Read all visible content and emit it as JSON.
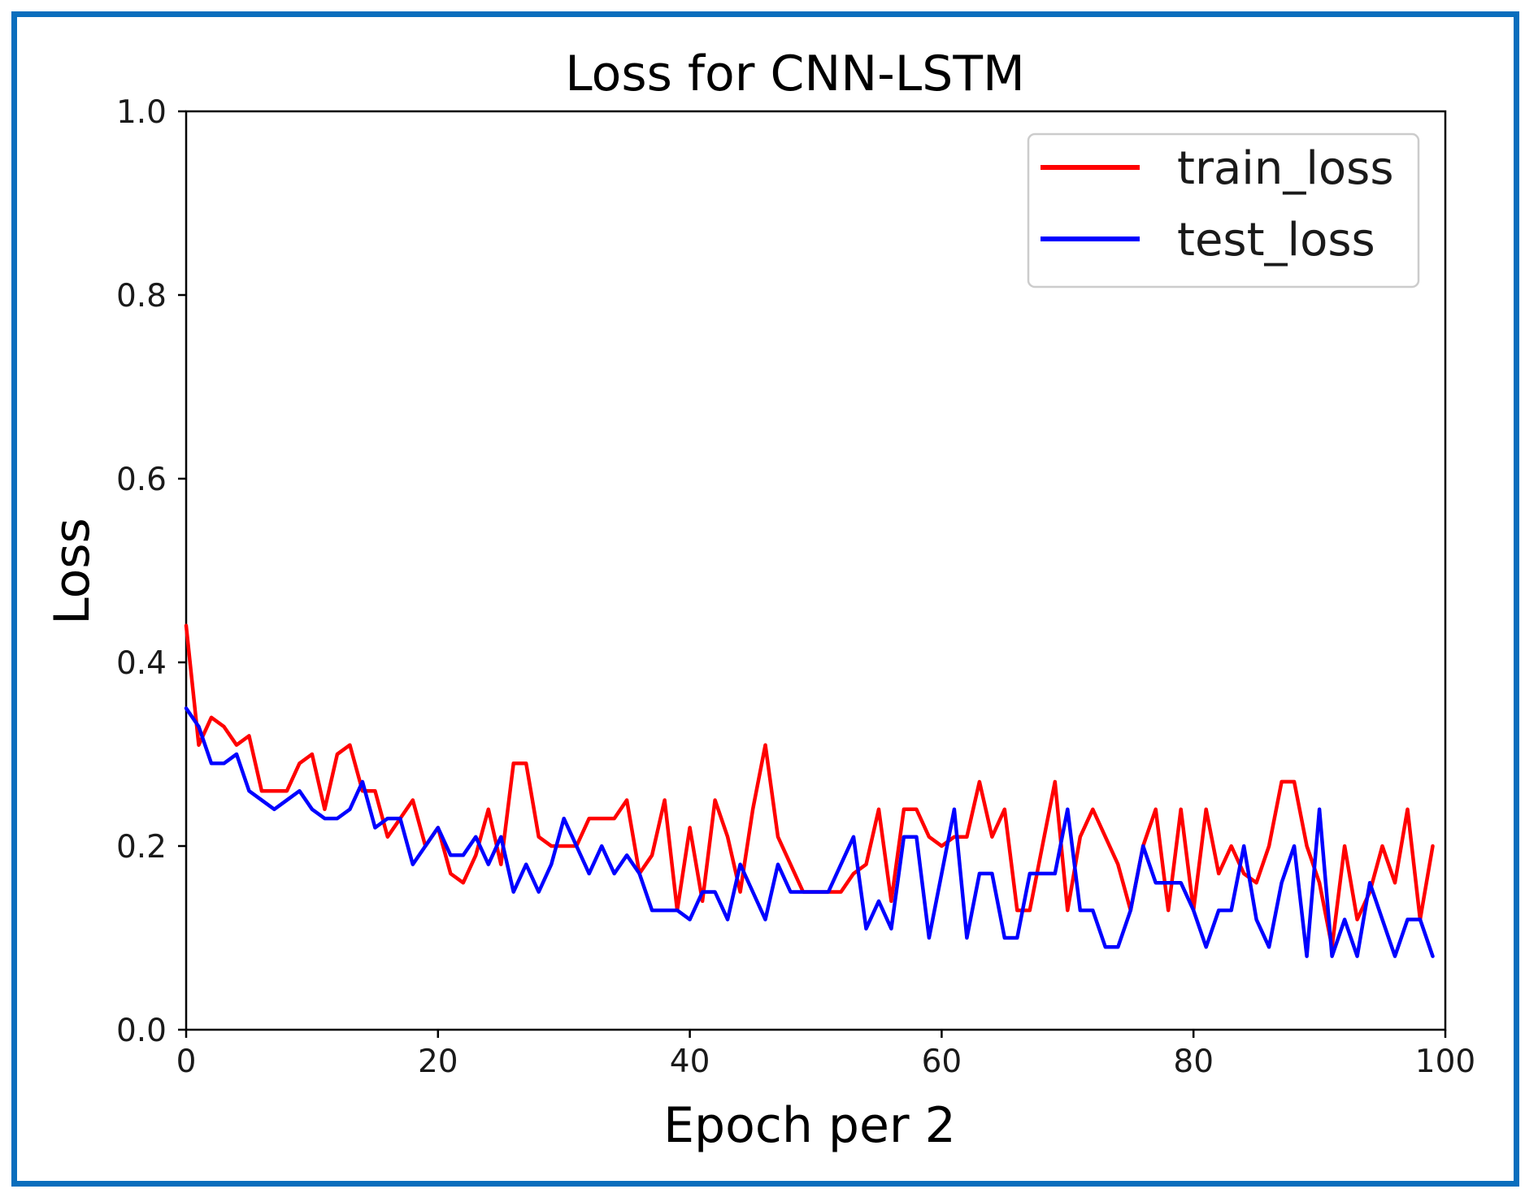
{
  "chart_data": {
    "type": "line",
    "title": "Loss for CNN-LSTM",
    "xlabel": "Epoch per 2",
    "ylabel": "Loss",
    "xlim": [
      0,
      100
    ],
    "ylim": [
      0.0,
      1.0
    ],
    "xticks": [
      "0",
      "20",
      "40",
      "60",
      "80",
      "100"
    ],
    "yticks": [
      "0.0",
      "0.2",
      "0.4",
      "0.6",
      "0.8",
      "1.0"
    ],
    "legend_position": "top-right",
    "grid": false,
    "series": [
      {
        "name": "train_loss",
        "color": "#ff0000",
        "x": [
          0,
          1,
          2,
          3,
          4,
          5,
          6,
          7,
          8,
          9,
          10,
          11,
          12,
          13,
          14,
          15,
          16,
          17,
          18,
          19,
          20,
          21,
          22,
          23,
          24,
          25,
          26,
          27,
          28,
          29,
          30,
          31,
          32,
          33,
          34,
          35,
          36,
          37,
          38,
          39,
          40,
          41,
          42,
          43,
          44,
          45,
          46,
          47,
          48,
          49,
          50,
          51,
          52,
          53,
          54,
          55,
          56,
          57,
          58,
          59,
          60,
          61,
          62,
          63,
          64,
          65,
          66,
          67,
          68,
          69,
          70,
          71,
          72,
          73,
          74,
          75,
          76,
          77,
          78,
          79,
          80,
          81,
          82,
          83,
          84,
          85,
          86,
          87,
          88,
          89,
          90,
          91,
          92,
          93,
          94,
          95,
          96,
          97,
          98,
          99
        ],
        "values": [
          0.44,
          0.31,
          0.34,
          0.33,
          0.31,
          0.32,
          0.26,
          0.26,
          0.26,
          0.29,
          0.3,
          0.24,
          0.3,
          0.31,
          0.26,
          0.26,
          0.21,
          0.23,
          0.25,
          0.2,
          0.22,
          0.17,
          0.16,
          0.19,
          0.24,
          0.18,
          0.29,
          0.29,
          0.21,
          0.2,
          0.2,
          0.2,
          0.23,
          0.23,
          0.23,
          0.25,
          0.17,
          0.19,
          0.25,
          0.13,
          0.22,
          0.14,
          0.25,
          0.21,
          0.15,
          0.24,
          0.31,
          0.21,
          0.18,
          0.15,
          0.15,
          0.15,
          0.15,
          0.17,
          0.18,
          0.24,
          0.14,
          0.24,
          0.24,
          0.21,
          0.2,
          0.21,
          0.21,
          0.27,
          0.21,
          0.24,
          0.13,
          0.13,
          0.2,
          0.27,
          0.13,
          0.21,
          0.24,
          0.21,
          0.18,
          0.13,
          0.2,
          0.24,
          0.13,
          0.24,
          0.13,
          0.24,
          0.17,
          0.2,
          0.17,
          0.16,
          0.2,
          0.27,
          0.27,
          0.2,
          0.16,
          0.09,
          0.2,
          0.12,
          0.15,
          0.2,
          0.16,
          0.24,
          0.12,
          0.2
        ]
      },
      {
        "name": "test_loss",
        "color": "#0000ff",
        "x": [
          0,
          1,
          2,
          3,
          4,
          5,
          6,
          7,
          8,
          9,
          10,
          11,
          12,
          13,
          14,
          15,
          16,
          17,
          18,
          19,
          20,
          21,
          22,
          23,
          24,
          25,
          26,
          27,
          28,
          29,
          30,
          31,
          32,
          33,
          34,
          35,
          36,
          37,
          38,
          39,
          40,
          41,
          42,
          43,
          44,
          45,
          46,
          47,
          48,
          49,
          50,
          51,
          52,
          53,
          54,
          55,
          56,
          57,
          58,
          59,
          60,
          61,
          62,
          63,
          64,
          65,
          66,
          67,
          68,
          69,
          70,
          71,
          72,
          73,
          74,
          75,
          76,
          77,
          78,
          79,
          80,
          81,
          82,
          83,
          84,
          85,
          86,
          87,
          88,
          89,
          90,
          91,
          92,
          93,
          94,
          95,
          96,
          97,
          98,
          99
        ],
        "values": [
          0.35,
          0.33,
          0.29,
          0.29,
          0.3,
          0.26,
          0.25,
          0.24,
          0.25,
          0.26,
          0.24,
          0.23,
          0.23,
          0.24,
          0.27,
          0.22,
          0.23,
          0.23,
          0.18,
          0.2,
          0.22,
          0.19,
          0.19,
          0.21,
          0.18,
          0.21,
          0.15,
          0.18,
          0.15,
          0.18,
          0.23,
          0.2,
          0.17,
          0.2,
          0.17,
          0.19,
          0.17,
          0.13,
          0.13,
          0.13,
          0.12,
          0.15,
          0.15,
          0.12,
          0.18,
          0.15,
          0.12,
          0.18,
          0.15,
          0.15,
          0.15,
          0.15,
          0.18,
          0.21,
          0.11,
          0.14,
          0.11,
          0.21,
          0.21,
          0.1,
          0.17,
          0.24,
          0.1,
          0.17,
          0.17,
          0.1,
          0.1,
          0.17,
          0.17,
          0.17,
          0.24,
          0.13,
          0.13,
          0.09,
          0.09,
          0.13,
          0.2,
          0.16,
          0.16,
          0.16,
          0.13,
          0.09,
          0.13,
          0.13,
          0.2,
          0.12,
          0.09,
          0.16,
          0.2,
          0.08,
          0.24,
          0.08,
          0.12,
          0.08,
          0.16,
          0.12,
          0.08,
          0.12,
          0.12,
          0.08
        ]
      }
    ]
  }
}
